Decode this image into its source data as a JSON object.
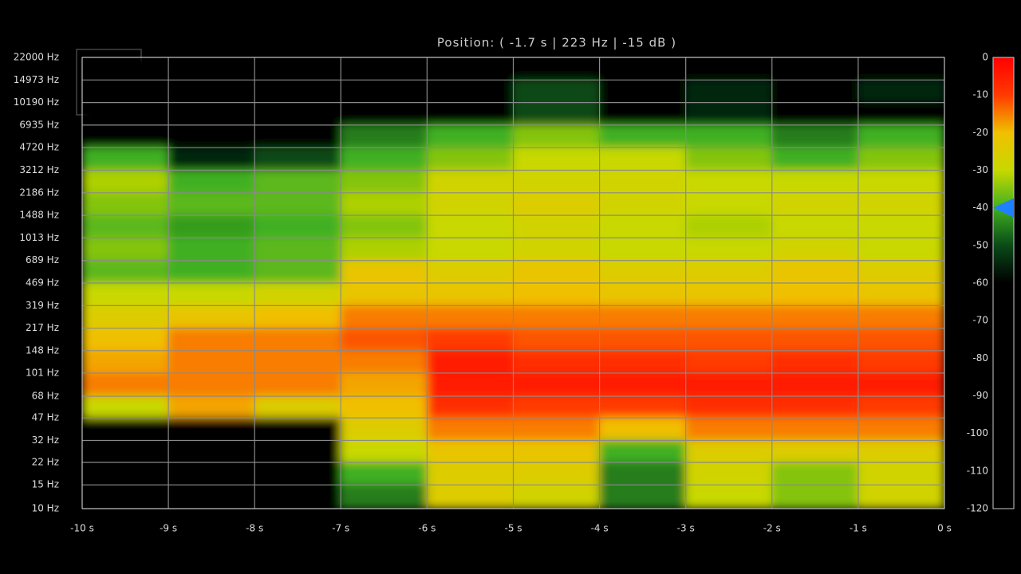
{
  "chart_data": {
    "type": "heatmap",
    "readout": "Position: (  -1.7 s  |  223 Hz  |  -15 dB  )",
    "xlim": [
      -10,
      0
    ],
    "xticks": [
      {
        "value": -10,
        "label": "-10 s"
      },
      {
        "value": -9,
        "label": "-9 s"
      },
      {
        "value": -8,
        "label": "-8 s"
      },
      {
        "value": -7,
        "label": "-7 s"
      },
      {
        "value": -6,
        "label": "-6 s"
      },
      {
        "value": -5,
        "label": "-5 s"
      },
      {
        "value": -4,
        "label": "-4 s"
      },
      {
        "value": -3,
        "label": "-3 s"
      },
      {
        "value": -2,
        "label": "-2 s"
      },
      {
        "value": -1,
        "label": "-1 s"
      },
      {
        "value": 0,
        "label": "0 s"
      }
    ],
    "ylim": [
      10,
      22000
    ],
    "log_y": true,
    "yticks": [
      {
        "value": 22000,
        "label": "22000 Hz"
      },
      {
        "value": 14973,
        "label": "14973 Hz"
      },
      {
        "value": 10190,
        "label": "10190 Hz"
      },
      {
        "value": 6935,
        "label": "6935 Hz"
      },
      {
        "value": 4720,
        "label": "4720 Hz"
      },
      {
        "value": 3212,
        "label": "3212 Hz"
      },
      {
        "value": 2186,
        "label": "2186 Hz"
      },
      {
        "value": 1488,
        "label": "1488 Hz"
      },
      {
        "value": 1013,
        "label": "1013 Hz"
      },
      {
        "value": 689,
        "label": "689 Hz"
      },
      {
        "value": 469,
        "label": "469 Hz"
      },
      {
        "value": 319,
        "label": "319 Hz"
      },
      {
        "value": 217,
        "label": "217 Hz"
      },
      {
        "value": 148,
        "label": "148 Hz"
      },
      {
        "value": 101,
        "label": "101 Hz"
      },
      {
        "value": 68,
        "label": "68 Hz"
      },
      {
        "value": 47,
        "label": "47 Hz"
      },
      {
        "value": 32,
        "label": "32 Hz"
      },
      {
        "value": 22,
        "label": "22 Hz"
      },
      {
        "value": 15,
        "label": "15 Hz"
      },
      {
        "value": 10,
        "label": "10 Hz"
      }
    ],
    "grid": true,
    "z": [
      [
        -80,
        -80,
        -80,
        -80,
        -80,
        -80,
        -80,
        -80,
        -70,
        -80
      ],
      [
        -80,
        -80,
        -80,
        -80,
        -70,
        -50,
        -60,
        -55,
        -60,
        -55
      ],
      [
        -80,
        -80,
        -80,
        -80,
        -60,
        -50,
        -60,
        -55,
        -60,
        -60
      ],
      [
        -80,
        -80,
        -80,
        -45,
        -40,
        -35,
        -40,
        -40,
        -45,
        -40
      ],
      [
        -40,
        -55,
        -50,
        -40,
        -35,
        -30,
        -30,
        -35,
        -40,
        -35
      ],
      [
        -32,
        -40,
        -38,
        -35,
        -28,
        -28,
        -28,
        -30,
        -30,
        -30
      ],
      [
        -35,
        -38,
        -38,
        -32,
        -28,
        -25,
        -28,
        -30,
        -28,
        -28
      ],
      [
        -38,
        -42,
        -40,
        -35,
        -30,
        -28,
        -30,
        -32,
        -30,
        -30
      ],
      [
        -35,
        -40,
        -38,
        -32,
        -30,
        -28,
        -30,
        -30,
        -28,
        -30
      ],
      [
        -38,
        -40,
        -38,
        -22,
        -25,
        -22,
        -25,
        -25,
        -22,
        -25
      ],
      [
        -30,
        -30,
        -28,
        -22,
        -22,
        -20,
        -22,
        -22,
        -20,
        -22
      ],
      [
        -25,
        -22,
        -20,
        -15,
        -15,
        -15,
        -15,
        -15,
        -15,
        -15
      ],
      [
        -20,
        -15,
        -15,
        -12,
        -10,
        -12,
        -12,
        -12,
        -12,
        -12
      ],
      [
        -18,
        -15,
        -15,
        -15,
        -5,
        -8,
        -8,
        -10,
        -8,
        -10
      ],
      [
        -15,
        -15,
        -15,
        -18,
        -5,
        -5,
        -5,
        -5,
        -5,
        -5
      ],
      [
        -30,
        -18,
        -25,
        -20,
        -8,
        -10,
        -10,
        -8,
        -8,
        -10
      ],
      [
        -70,
        -60,
        -70,
        -25,
        -15,
        -15,
        -20,
        -15,
        -15,
        -15
      ],
      [
        -70,
        -70,
        -70,
        -30,
        -22,
        -22,
        -40,
        -25,
        -25,
        -25
      ],
      [
        -70,
        -70,
        -70,
        -40,
        -25,
        -25,
        -45,
        -28,
        -35,
        -28
      ],
      [
        -70,
        -70,
        -70,
        -45,
        -25,
        -28,
        -45,
        -30,
        -35,
        -28
      ]
    ],
    "zlim": [
      -120,
      0
    ],
    "zticks": [
      0,
      -10,
      -20,
      -30,
      -40,
      -50,
      -60,
      -70,
      -80,
      -90,
      -100,
      -110,
      -120
    ],
    "colorscale": [
      "#ff0000",
      "#ff3a00",
      "#f0c000",
      "#c8d800",
      "#40b020",
      "#0a4a18",
      "#000000",
      "#000000",
      "#000000",
      "#000000",
      "#000000",
      "#000000",
      "#000000"
    ],
    "colorbar_marker": -40,
    "marker_color": "#1e7fff"
  }
}
